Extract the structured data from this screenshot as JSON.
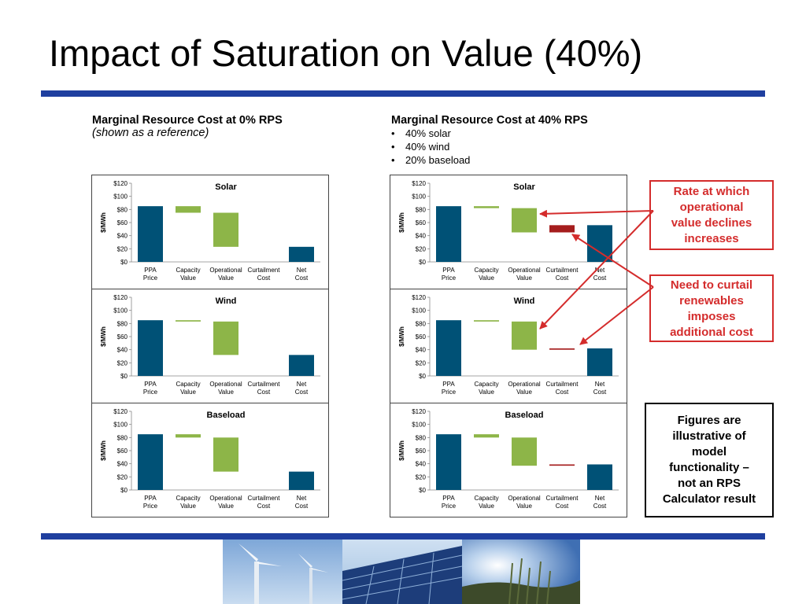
{
  "slide": {
    "title": "Impact of Saturation on Value (40%)"
  },
  "left_heading": {
    "title": "Marginal Resource Cost at 0% RPS",
    "subtitle": "(shown as a reference)"
  },
  "right_heading": {
    "title": "Marginal Resource Cost at 40% RPS",
    "bullets": [
      "40% solar",
      "40% wind",
      "20% baseload"
    ]
  },
  "callouts": {
    "rate": [
      "Rate at which",
      "operational",
      "value declines",
      "increases"
    ],
    "curtail": [
      "Need to curtail",
      "renewables",
      "imposes",
      "additional cost"
    ],
    "note": [
      "Figures are",
      "illustrative of",
      "model",
      "functionality –",
      "not an RPS",
      "Calculator result"
    ]
  },
  "colors": {
    "bar_blue": "#005176",
    "bar_green": "#8db548",
    "bar_red": "#a51d1d",
    "accent_red": "#d42c2c",
    "rule_blue": "#1f3f9f"
  },
  "chart_data": [
    {
      "type": "bar",
      "panel": "0% RPS",
      "title": "Solar",
      "ylabel": "$/MWh",
      "ylim": [
        0,
        120
      ],
      "yticks": [
        "$0",
        "$20",
        "$40",
        "$60",
        "$80",
        "$100",
        "$120"
      ],
      "categories": [
        "PPA Price",
        "Capacity Value",
        "Operational Value",
        "Curtailment Cost",
        "Net Cost"
      ],
      "floating": [
        [
          0,
          85
        ],
        [
          75,
          85
        ],
        [
          23,
          75
        ],
        null,
        [
          0,
          23
        ]
      ]
    },
    {
      "type": "bar",
      "panel": "0% RPS",
      "title": "Wind",
      "ylabel": "$/MWh",
      "ylim": [
        0,
        120
      ],
      "yticks": [
        "$0",
        "$20",
        "$40",
        "$60",
        "$80",
        "$100",
        "$120"
      ],
      "categories": [
        "PPA Price",
        "Capacity Value",
        "Operational Value",
        "Curtailment Cost",
        "Net Cost"
      ],
      "floating": [
        [
          0,
          85
        ],
        [
          83,
          85
        ],
        [
          32,
          83
        ],
        null,
        [
          0,
          32
        ]
      ]
    },
    {
      "type": "bar",
      "panel": "0% RPS",
      "title": "Baseload",
      "ylabel": "$/MWh",
      "ylim": [
        0,
        120
      ],
      "yticks": [
        "$0",
        "$20",
        "$40",
        "$60",
        "$80",
        "$100",
        "$120"
      ],
      "categories": [
        "PPA Price",
        "Capacity Value",
        "Operational Value",
        "Curtailment Cost",
        "Net Cost"
      ],
      "floating": [
        [
          0,
          85
        ],
        [
          80,
          85
        ],
        [
          28,
          80
        ],
        null,
        [
          0,
          28
        ]
      ]
    },
    {
      "type": "bar",
      "panel": "40% RPS",
      "title": "Solar",
      "ylabel": "$/MWh",
      "ylim": [
        0,
        120
      ],
      "yticks": [
        "$0",
        "$20",
        "$40",
        "$60",
        "$80",
        "$100",
        "$120"
      ],
      "categories": [
        "PPA Price",
        "Capacity Value",
        "Operational Value",
        "Curtailment Cost",
        "Net Cost"
      ],
      "floating": [
        [
          0,
          85
        ],
        [
          82,
          85
        ],
        [
          45,
          82
        ],
        [
          45,
          56
        ],
        [
          0,
          56
        ]
      ]
    },
    {
      "type": "bar",
      "panel": "40% RPS",
      "title": "Wind",
      "ylabel": "$/MWh",
      "ylim": [
        0,
        120
      ],
      "yticks": [
        "$0",
        "$20",
        "$40",
        "$60",
        "$80",
        "$100",
        "$120"
      ],
      "categories": [
        "PPA Price",
        "Capacity Value",
        "Operational Value",
        "Curtailment Cost",
        "Net Cost"
      ],
      "floating": [
        [
          0,
          85
        ],
        [
          83,
          85
        ],
        [
          40,
          83
        ],
        [
          40,
          42
        ],
        [
          0,
          42
        ]
      ]
    },
    {
      "type": "bar",
      "panel": "40% RPS",
      "title": "Baseload",
      "ylabel": "$/MWh",
      "ylim": [
        0,
        120
      ],
      "yticks": [
        "$0",
        "$20",
        "$40",
        "$60",
        "$80",
        "$100",
        "$120"
      ],
      "categories": [
        "PPA Price",
        "Capacity Value",
        "Operational Value",
        "Curtailment Cost",
        "Net Cost"
      ],
      "floating": [
        [
          0,
          85
        ],
        [
          80,
          85
        ],
        [
          37,
          80
        ],
        [
          37,
          39
        ],
        [
          0,
          39
        ]
      ]
    }
  ]
}
